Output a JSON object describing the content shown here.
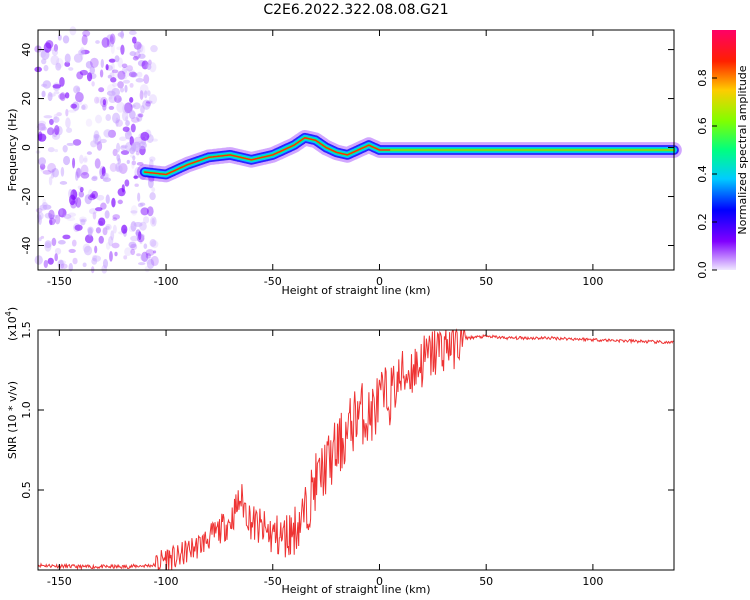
{
  "page": {
    "title": "C2E6.2022.322.08.08.G21"
  },
  "chart_data": [
    {
      "type": "heatmap",
      "xlabel": "Height of straight line (km)",
      "ylabel": "Frequency (Hz)",
      "xlim": [
        -160,
        138
      ],
      "ylim": [
        -50,
        48
      ],
      "xticks": [
        -150,
        -100,
        -50,
        0,
        50,
        100
      ],
      "xtick_labels": [
        "-150",
        "-100",
        "-50",
        "0",
        "50",
        "100"
      ],
      "yticks": [
        -40,
        -20,
        0,
        20,
        40
      ],
      "ytick_labels": [
        "-40",
        "-20",
        "0",
        "20",
        "40"
      ],
      "noise_region_x": [
        -160,
        -105
      ],
      "ridge": {
        "x": [
          -110,
          -100,
          -90,
          -80,
          -70,
          -60,
          -50,
          -40,
          -35,
          -30,
          -25,
          -20,
          -15,
          -10,
          -5,
          0,
          5,
          10,
          20,
          50,
          100,
          138
        ],
        "y": [
          -10,
          -11,
          -7,
          -4,
          -3,
          -5,
          -3,
          1,
          4,
          3,
          0,
          -2,
          -3,
          -1,
          1,
          -1,
          -1,
          -1,
          -1,
          -1,
          -1,
          -1
        ]
      },
      "colorbar": {
        "label": "Normalized spectral amplitude",
        "range": [
          0,
          1
        ],
        "ticks": [
          0.0,
          0.2,
          0.4,
          0.6,
          0.8
        ],
        "tick_labels": [
          "0.0",
          "0.2",
          "0.4",
          "0.6",
          "0.8"
        ]
      },
      "grid": false
    },
    {
      "type": "line",
      "xlabel": "Height of straight line (km)",
      "ylabel": "SNR (10 * v/v)",
      "multiplier_label": "(x10",
      "multiplier_exponent": "4",
      "multiplier_suffix": ")",
      "xlim": [
        -160,
        138
      ],
      "ylim": [
        0,
        1.5
      ],
      "xticks": [
        -150,
        -100,
        -50,
        0,
        50,
        100
      ],
      "xtick_labels": [
        "-150",
        "-100",
        "-50",
        "0",
        "50",
        "100"
      ],
      "yticks": [
        0.5,
        1.0,
        1.5
      ],
      "ytick_labels": [
        "0.5",
        "1.0",
        "1.5"
      ],
      "color": "#ee3333",
      "series": [
        {
          "x": [
            -160,
            -140,
            -120,
            -105,
            -100,
            -95,
            -90,
            -85,
            -80,
            -75,
            -70,
            -65,
            -60,
            -55,
            -50,
            -45,
            -40,
            -35,
            -30,
            -25,
            -20,
            -15,
            -10,
            -5,
            0,
            5,
            10,
            15,
            20,
            25,
            30,
            35,
            40,
            50,
            60,
            80,
            100,
            120,
            138
          ],
          "y": [
            0.03,
            0.02,
            0.02,
            0.03,
            0.08,
            0.07,
            0.12,
            0.15,
            0.2,
            0.25,
            0.3,
            0.45,
            0.3,
            0.25,
            0.22,
            0.2,
            0.25,
            0.35,
            0.55,
            0.65,
            0.75,
            0.85,
            1.0,
            0.95,
            1.05,
            1.1,
            1.2,
            1.25,
            1.3,
            1.35,
            1.4,
            1.43,
            1.45,
            1.46,
            1.45,
            1.45,
            1.44,
            1.43,
            1.42
          ]
        }
      ],
      "grid": false
    }
  ]
}
